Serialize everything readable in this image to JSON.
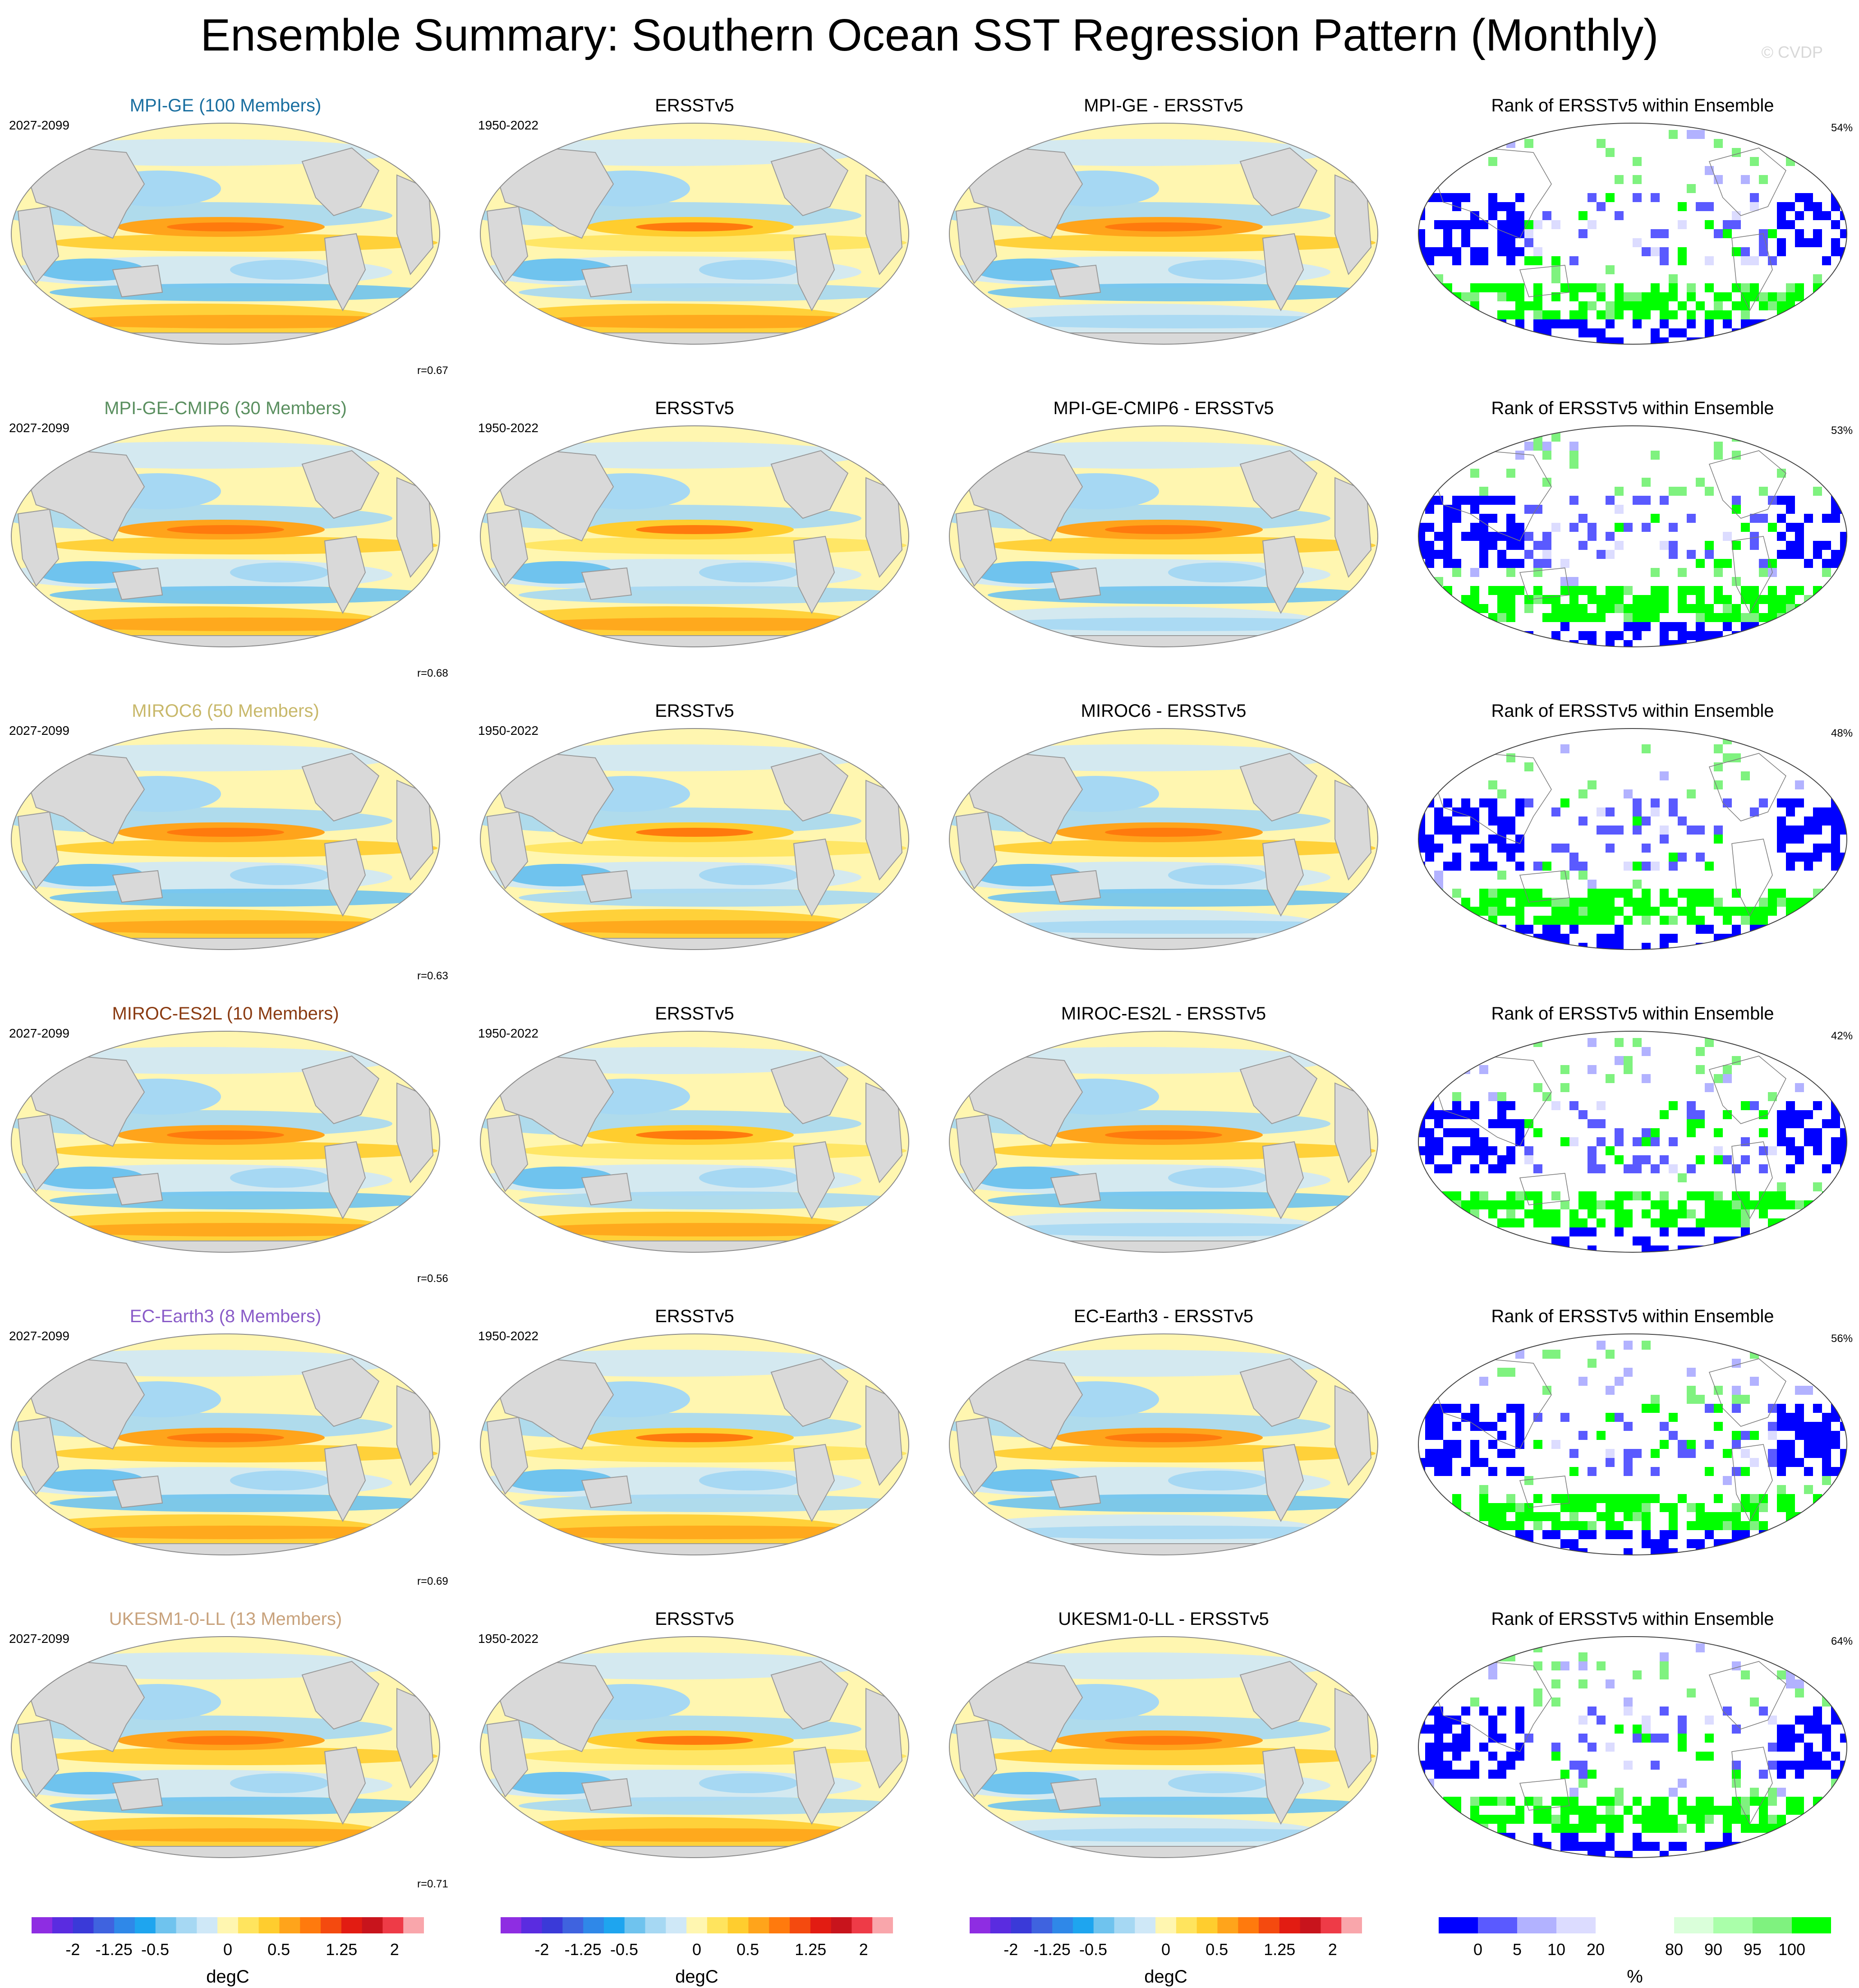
{
  "title": "Ensemble Summary: Southern Ocean SST Regression Pattern (Monthly)",
  "watermark": "© CVDP",
  "colors": {
    "sst_levels": [
      "#8e2de2",
      "#5a2ce0",
      "#3a3ad8",
      "#3f63df",
      "#2f88e8",
      "#1ea5ef",
      "#6fc3ee",
      "#a6d8f3",
      "#cfe8f7",
      "#fff6b0",
      "#ffe45e",
      "#ffcd2e",
      "#ffa41b",
      "#ff7a0d",
      "#f44a0f",
      "#e21c12",
      "#c8141c",
      "#ee3b47",
      "#f9a6ab"
    ],
    "rank_levels": [
      "#0000ff",
      "#5a5aff",
      "#b2b2ff",
      "#dcdcff",
      "#ffffff",
      "#ffffff",
      "#daffda",
      "#aaffaa",
      "#7ff27f",
      "#00ff00"
    ],
    "land": "#d9d9d9",
    "title_mpi_ge": "#1a6fa0",
    "title_mpi_ge_cmip6": "#5a8f5f",
    "title_miroc6": "#c8b86a",
    "title_miroc_es2l": "#8a3b12",
    "title_ec_earth3": "#8a5cc8",
    "title_ukesm": "#c8a27c"
  },
  "chart_data": {
    "type": "heatmap",
    "projection": "Robinson (Pacific-centered)",
    "units": "degC",
    "sst_colorbar": {
      "ticks": [
        "-2",
        "-1.25",
        "-0.5",
        "0",
        "0.5",
        "1.25",
        "2"
      ],
      "unit": "degC"
    },
    "rank_colorbar": {
      "ticks": [
        "0",
        "5",
        "10",
        "20",
        "80",
        "90",
        "95",
        "100"
      ],
      "unit": "%"
    },
    "rows": [
      {
        "model": "MPI-GE (100 Members)",
        "model_color": "#1a6fa0",
        "model_period": "2027-2099",
        "obs": "ERSSTv5",
        "obs_period": "1950-2022",
        "diff": "MPI-GE - ERSSTv5",
        "rank": "Rank of ERSSTv5 within Ensemble",
        "pattern_corr": "r=0.67",
        "rank_pct": "54%"
      },
      {
        "model": "MPI-GE-CMIP6 (30 Members)",
        "model_color": "#5a8f5f",
        "model_period": "2027-2099",
        "obs": "ERSSTv5",
        "obs_period": "1950-2022",
        "diff": "MPI-GE-CMIP6 - ERSSTv5",
        "rank": "Rank of ERSSTv5 within Ensemble",
        "pattern_corr": "r=0.68",
        "rank_pct": "53%"
      },
      {
        "model": "MIROC6 (50 Members)",
        "model_color": "#c8b86a",
        "model_period": "2027-2099",
        "obs": "ERSSTv5",
        "obs_period": "1950-2022",
        "diff": "MIROC6 - ERSSTv5",
        "rank": "Rank of ERSSTv5 within Ensemble",
        "pattern_corr": "r=0.63",
        "rank_pct": "48%"
      },
      {
        "model": "MIROC-ES2L (10 Members)",
        "model_color": "#8a3b12",
        "model_period": "2027-2099",
        "obs": "ERSSTv5",
        "obs_period": "1950-2022",
        "diff": "MIROC-ES2L - ERSSTv5",
        "rank": "Rank of ERSSTv5 within Ensemble",
        "pattern_corr": "r=0.56",
        "rank_pct": "42%"
      },
      {
        "model": "EC-Earth3 (8 Members)",
        "model_color": "#8a5cc8",
        "model_period": "2027-2099",
        "obs": "ERSSTv5",
        "obs_period": "1950-2022",
        "diff": "EC-Earth3 - ERSSTv5",
        "rank": "Rank of ERSSTv5 within Ensemble",
        "pattern_corr": "r=0.69",
        "rank_pct": "56%"
      },
      {
        "model": "UKESM1-0-LL (13 Members)",
        "model_color": "#c8a27c",
        "model_period": "2027-2099",
        "obs": "ERSSTv5",
        "obs_period": "1950-2022",
        "diff": "UKESM1-0-LL - ERSSTv5",
        "rank": "Rank of ERSSTv5 within Ensemble",
        "pattern_corr": "r=0.71",
        "rank_pct": "64%"
      }
    ]
  }
}
